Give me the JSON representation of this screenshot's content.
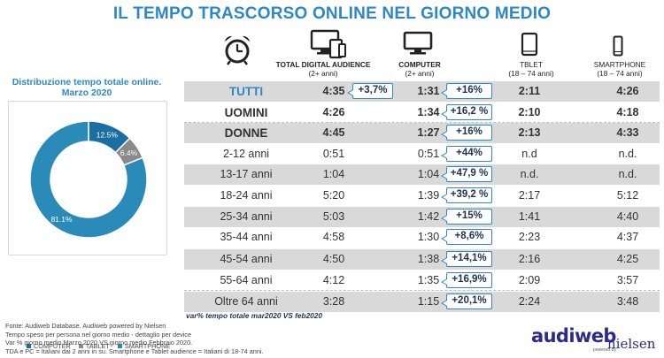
{
  "title": "IL TEMPO TRASCORSO ONLINE NEL GIORNO MEDIO",
  "donut": {
    "title_line1": "Distribuzione tempo totale online.",
    "title_line2": "Marzo 2020",
    "legend": [
      "COMPUTER",
      "TABLET",
      "SMARTPHONE"
    ]
  },
  "columns": {
    "tda": {
      "name": "TOTAL DIGITAL AUDIENCE",
      "sub": "(2+ anni)"
    },
    "pc": {
      "name": "COMPUTER",
      "sub": "(2+ anni)"
    },
    "tablet": {
      "name": "TBLET",
      "sub": "(18 – 74 anni)"
    },
    "smartphone": {
      "name": "SMARTPHONE",
      "sub": "(18 – 74 anni)"
    }
  },
  "icons": [
    "alarm-clock-icon",
    "multi-device-icon",
    "computer-monitor-icon",
    "tablet-icon",
    "smartphone-icon"
  ],
  "colors": {
    "accent": "#2e88c4",
    "computer": "#1a6ea1",
    "tablet": "#8a8a8a",
    "smartphone": "#2a8ab8",
    "shade": "#d9d9d9",
    "callout_border": "#2e88c4"
  },
  "rows": [
    {
      "label": "TUTTI",
      "tda": "4:35",
      "tda_var": "+3,7%",
      "pc": "1:31",
      "pc_var": "+16%",
      "tablet": "2:11",
      "smartphone": "4:26"
    },
    {
      "label": "UOMINI",
      "tda": "4:26",
      "tda_var": "",
      "pc": "1:34",
      "pc_var": "+16,2 %",
      "tablet": "2:10",
      "smartphone": "4:18"
    },
    {
      "label": "DONNE",
      "tda": "4:45",
      "tda_var": "",
      "pc": "1:27",
      "pc_var": "+16%",
      "tablet": "2:13",
      "smartphone": "4:33"
    },
    {
      "label": "2-12 anni",
      "tda": "0:51",
      "tda_var": "",
      "pc": "0:51",
      "pc_var": "+44%",
      "tablet": "n.d",
      "smartphone": "n.d."
    },
    {
      "label": "13-17 anni",
      "tda": "1:04",
      "tda_var": "",
      "pc": "1:04",
      "pc_var": "+47,9 %",
      "tablet": "n.d.",
      "smartphone": "n.d."
    },
    {
      "label": "18-24 anni",
      "tda": "5:20",
      "tda_var": "",
      "pc": "1:39",
      "pc_var": "+39,2 %",
      "tablet": "2:17",
      "smartphone": "5:12"
    },
    {
      "label": "25-34 anni",
      "tda": "5:03",
      "tda_var": "",
      "pc": "1:42",
      "pc_var": "+15%",
      "tablet": "1:41",
      "smartphone": "4:40"
    },
    {
      "label": "35-44 anni",
      "tda": "4:58",
      "tda_var": "",
      "pc": "1:30",
      "pc_var": "+8,6%",
      "tablet": "2:23",
      "smartphone": "4:37"
    },
    {
      "label": "45-54 anni",
      "tda": "4:50",
      "tda_var": "",
      "pc": "1:38",
      "pc_var": "+14,1%",
      "tablet": "2:16",
      "smartphone": "4:25"
    },
    {
      "label": "55-64 anni",
      "tda": "4:12",
      "tda_var": "",
      "pc": "1:35",
      "pc_var": "+16,9%",
      "tablet": "2:09",
      "smartphone": "3:57"
    },
    {
      "label": "Oltre 64 anni",
      "tda": "3:28",
      "tda_var": "",
      "pc": "1:15",
      "pc_var": "+20,1%",
      "tablet": "2:24",
      "smartphone": "3:48"
    }
  ],
  "var_note": "var% tempo totale mar2020 VS feb2020",
  "sources": [
    "Fonte: Audiweb Database. Audiweb powered by Nielsen",
    "Tempo speso per persona nel giorno medio - dettaglio per device",
    "Var % giorno medio Marzo 2020 VS giorno medio Febbraio 2020.",
    "TDA e PC = Italiani dai 2 anni in su. Smartphone e Tablet audience = Italiani di 18-74 anni."
  ],
  "logo": {
    "text": "audiweb",
    "powered": "powered by",
    "partner": "nielsen"
  },
  "chart_data": {
    "type": "pie",
    "title": "Distribuzione tempo totale online. Marzo 2020",
    "categories": [
      "COMPUTER",
      "TABLET",
      "SMARTPHONE"
    ],
    "values": [
      12.5,
      6.4,
      81.1
    ],
    "labels": [
      "12.5%",
      "6.4%",
      "81.1%"
    ],
    "donut": true,
    "legend_position": "bottom"
  }
}
